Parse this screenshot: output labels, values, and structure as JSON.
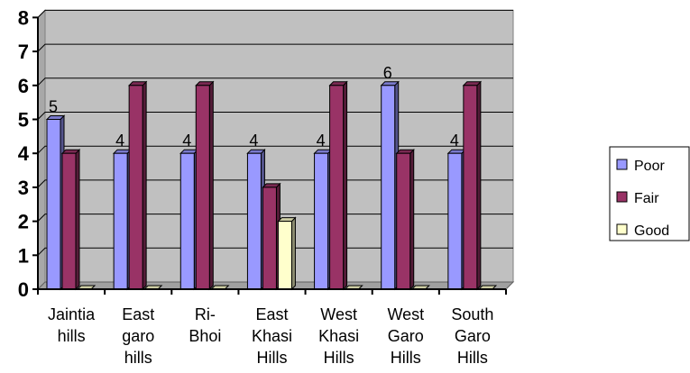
{
  "chart_data": {
    "type": "bar",
    "categories": [
      [
        "Jaintia",
        "hills"
      ],
      [
        "East",
        "garo",
        "hills"
      ],
      [
        "Ri-",
        "Bhoi"
      ],
      [
        "East",
        "Khasi",
        "Hills"
      ],
      [
        "West",
        "Khasi",
        "Hills"
      ],
      [
        "West",
        "Garo",
        "Hills"
      ],
      [
        "South",
        "Garo",
        "Hills"
      ]
    ],
    "series": [
      {
        "name": "Poor",
        "values": [
          5,
          4,
          4,
          4,
          4,
          6,
          4
        ],
        "color": "#9999ff"
      },
      {
        "name": "Fair",
        "values": [
          4,
          6,
          6,
          3,
          6,
          4,
          6
        ],
        "color": "#993366"
      },
      {
        "name": "Good",
        "values": [
          0,
          0,
          0,
          2,
          0,
          0,
          0
        ],
        "color": "#ffffcc"
      }
    ],
    "data_labels": [
      {
        "category": 0,
        "series": 0,
        "text": "5"
      },
      {
        "category": 1,
        "series": 0,
        "text": "4"
      },
      {
        "category": 2,
        "series": 0,
        "text": "4"
      },
      {
        "category": 3,
        "series": 0,
        "text": "4"
      },
      {
        "category": 4,
        "series": 0,
        "text": "4"
      },
      {
        "category": 5,
        "series": 0,
        "text": "6"
      },
      {
        "category": 6,
        "series": 0,
        "text": "4"
      }
    ],
    "yticks": [
      "0",
      "1",
      "2",
      "3",
      "4",
      "5",
      "6",
      "7",
      "8"
    ],
    "ylim": [
      0,
      8
    ],
    "grid": true,
    "wall_color": "#c0c0c0",
    "legend_position": "right"
  }
}
